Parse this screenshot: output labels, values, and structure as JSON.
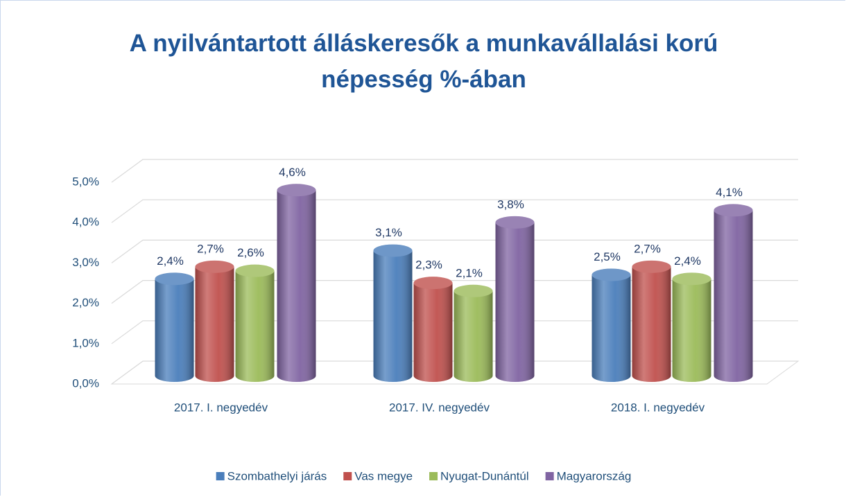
{
  "chart_data": {
    "type": "bar3d",
    "title": "A nyilvántartott álláskeresők a munkavállalási korú népesség %-ában",
    "categories": [
      "2017. I. negyedév",
      "2017. IV. negyedév",
      "2018. I. negyedév"
    ],
    "series": [
      {
        "name": "Szombathelyi járás",
        "color": "#4a7ebb",
        "values": [
          2.4,
          3.1,
          2.5
        ],
        "value_labels": [
          "2,4%",
          "3,1%",
          "2,5%"
        ]
      },
      {
        "name": "Vas megye",
        "color": "#c0504d",
        "values": [
          2.7,
          2.3,
          2.7
        ],
        "value_labels": [
          "2,7%",
          "2,3%",
          "2,7%"
        ]
      },
      {
        "name": "Nyugat-Dunántúl",
        "color": "#9bbb59",
        "values": [
          2.6,
          2.1,
          2.4
        ],
        "value_labels": [
          "2,6%",
          "2,1%",
          "2,4%"
        ]
      },
      {
        "name": "Magyarország",
        "color": "#8064a2",
        "values": [
          4.6,
          3.8,
          4.1
        ],
        "value_labels": [
          "4,6%",
          "3,8%",
          "4,1%"
        ]
      }
    ],
    "ylim": [
      0,
      5
    ],
    "yticks": [
      {
        "value": 0,
        "label": "0,0%"
      },
      {
        "value": 1,
        "label": "1,0%"
      },
      {
        "value": 2,
        "label": "2,0%"
      },
      {
        "value": 3,
        "label": "3,0%"
      },
      {
        "value": 4,
        "label": "4,0%"
      },
      {
        "value": 5,
        "label": "5,0%"
      }
    ],
    "grid": true,
    "legend": "bottom"
  }
}
